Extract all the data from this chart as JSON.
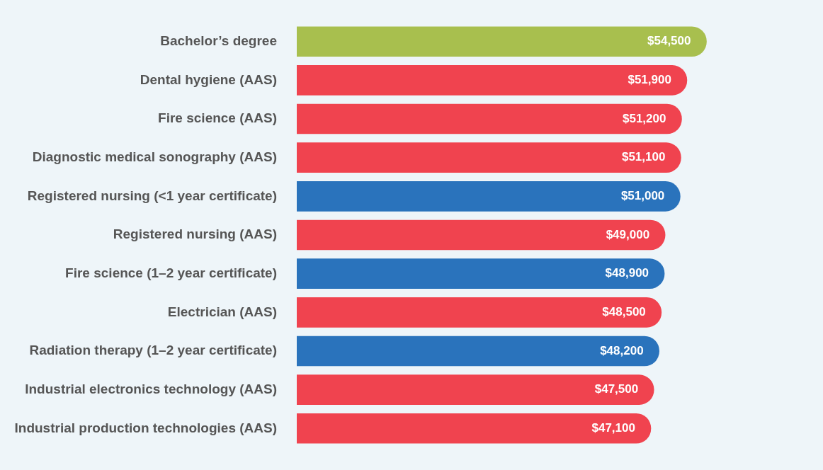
{
  "chart_data": {
    "type": "bar",
    "orientation": "horizontal",
    "categories": [
      "Bachelor’s degree",
      "Dental hygiene (AAS)",
      "Fire science (AAS)",
      "Diagnostic medical sonography (AAS)",
      "Registered nursing (<1 year certificate)",
      "Registered nursing (AAS)",
      "Fire science (1–2 year certificate)",
      "Electrician (AAS)",
      "Radiation therapy (1–2 year certificate)",
      "Industrial electronics technology (AAS)",
      "Industrial production technologies (AAS)"
    ],
    "values": [
      54500,
      51900,
      51200,
      51100,
      51000,
      49000,
      48900,
      48500,
      48200,
      47500,
      47100
    ],
    "colors": [
      "#a8bf4e",
      "#f0434f",
      "#f0434f",
      "#f0434f",
      "#2a73bc",
      "#f0434f",
      "#2a73bc",
      "#f0434f",
      "#2a73bc",
      "#f0434f",
      "#f0434f"
    ],
    "value_labels": [
      "$54,500",
      "$51,900",
      "$51,200",
      "$51,100",
      "$51,000",
      "$49,000",
      "$48,900",
      "$48,500",
      "$48,200",
      "$47,500",
      "$47,100"
    ],
    "tick_labels": "y"
  }
}
